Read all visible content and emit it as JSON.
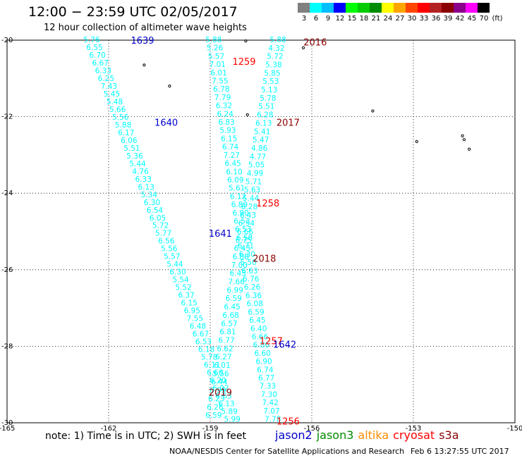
{
  "title": "12:00 − 23:59 UTC 02/05/2017",
  "subtitle": "12 hour collection of altimeter wave heights",
  "color_scale": {
    "unit": "(ft)",
    "bins": [
      {
        "label": "3",
        "color": "#808080"
      },
      {
        "label": "6",
        "color": "#00ffff"
      },
      {
        "label": "9",
        "color": "#00bfff"
      },
      {
        "label": "12",
        "color": "#0000ff"
      },
      {
        "label": "15",
        "color": "#00ff00"
      },
      {
        "label": "18",
        "color": "#00cd00"
      },
      {
        "label": "21",
        "color": "#008b00"
      },
      {
        "label": "24",
        "color": "#ffff00"
      },
      {
        "label": "27",
        "color": "#ffa500"
      },
      {
        "label": "30",
        "color": "#ff4500"
      },
      {
        "label": "33",
        "color": "#ff0000"
      },
      {
        "label": "36",
        "color": "#b22222"
      },
      {
        "label": "39",
        "color": "#8b0000"
      },
      {
        "label": "42",
        "color": "#8b008b"
      },
      {
        "label": "45",
        "color": "#ff00ff"
      },
      {
        "label": "70",
        "color": "#000000"
      }
    ]
  },
  "axes": {
    "lon_ticks": [
      "-165",
      "-162",
      "-159",
      "-156",
      "-153",
      "-150"
    ],
    "lat_ticks": [
      "-20",
      "-22",
      "-24",
      "-26",
      "-28",
      "-30"
    ]
  },
  "pass_labels": [
    {
      "text": "1639",
      "lon": -161.0,
      "lat": -20.0,
      "mission": "jason2"
    },
    {
      "text": "2016",
      "lon": -155.9,
      "lat": -20.05,
      "mission": "s3a"
    },
    {
      "text": "1259",
      "lon": -158.0,
      "lat": -20.55,
      "mission": "cryosat"
    },
    {
      "text": "1640",
      "lon": -160.3,
      "lat": -22.15,
      "mission": "jason2"
    },
    {
      "text": "2017",
      "lon": -156.7,
      "lat": -22.15,
      "mission": "s3a"
    },
    {
      "text": "1258",
      "lon": -157.3,
      "lat": -24.25,
      "mission": "cryosat"
    },
    {
      "text": "1641",
      "lon": -158.7,
      "lat": -25.05,
      "mission": "jason2"
    },
    {
      "text": "2018",
      "lon": -157.4,
      "lat": -25.7,
      "mission": "s3a"
    },
    {
      "text": "1257",
      "lon": -157.2,
      "lat": -27.85,
      "mission": "cryosat"
    },
    {
      "text": "1642",
      "lon": -156.8,
      "lat": -27.95,
      "mission": "jason2"
    },
    {
      "text": "2019",
      "lon": -158.7,
      "lat": -29.2,
      "mission": "s3a"
    },
    {
      "text": "1256",
      "lon": -156.7,
      "lat": -29.95,
      "mission": "cryosat"
    }
  ],
  "tracks": [
    {
      "name": "1639/1640",
      "start": {
        "lon": -162.5,
        "lat": -19.98
      },
      "end": {
        "lon": -158.35,
        "lat": -29.9
      },
      "values": [
        "5.76",
        "6.55",
        "6.70",
        "6.67",
        "6.33",
        "6.25",
        "7.43",
        "5.45",
        "5.48",
        "5.66",
        "5.56",
        "5.88",
        "6.17",
        "6.06",
        "5.51",
        "5.36",
        "5.44",
        "4.76",
        "6.33",
        "6.13",
        "5.34",
        "6.30",
        "6.54",
        "6.05",
        "5.72",
        "5.77",
        "6.56",
        "5.56",
        "5.57",
        "5.44",
        "6.30",
        "5.54",
        "5.52",
        "6.37",
        "6.15",
        "6.95",
        "7.55",
        "6.48",
        "6.67",
        "6.53",
        "6.18",
        "5.78",
        "6.11",
        "6.60",
        "6.20",
        "6.02",
        "6.63",
        "6.13",
        "5.89",
        "5.99"
      ],
      "color": "#00ffff"
    },
    {
      "name": "1259/1258",
      "start": {
        "lon": -158.9,
        "lat": -19.98
      },
      "end": {
        "lon": -157.15,
        "lat": -29.9
      },
      "values": [
        "5.88",
        "5.26",
        "5.57",
        "7.01",
        "6.01",
        "7.55",
        "6.78",
        "7.79",
        "6.32",
        "6.24",
        "6.83",
        "5.93",
        "6.15",
        "6.74",
        "7.27",
        "6.45",
        "6.10",
        "6.09",
        "5.61",
        "6.12",
        "6.89",
        "6.90",
        "6.53",
        "6.53",
        "6.58",
        "6.71",
        "6.30",
        "5.50",
        "6.63",
        "6.76",
        "6.26",
        "6.36",
        "6.08",
        "6.59",
        "6.45",
        "6.40",
        "6.66",
        "6.86",
        "6.60",
        "6.90",
        "6.74",
        "6.77",
        "7.33",
        "7.30",
        "7.42",
        "7.07",
        "7.78"
      ],
      "color": "#00ffff"
    },
    {
      "name": "2016/2017",
      "start": {
        "lon": -157.0,
        "lat": -19.98
      },
      "end": {
        "lon": -158.9,
        "lat": -29.8
      },
      "values": [
        "5.88",
        "4.32",
        "5.72",
        "5.38",
        "5.85",
        "5.53",
        "5.13",
        "5.78",
        "5.51",
        "6.28",
        "6.13",
        "5.41",
        "5.47",
        "4.86",
        "4.77",
        "5.05",
        "4.99",
        "5.71",
        "5.63",
        "5.44",
        "6.28",
        "6.43",
        "6.54",
        "6.66",
        "6.75",
        "6.43",
        "6.88",
        "7.00",
        "6.45",
        "7.66",
        "6.99",
        "6.59",
        "6.45",
        "6.68",
        "6.57",
        "6.81",
        "6.77",
        "6.62",
        "6.27",
        "6.01",
        "5.56",
        "6.44",
        "6.99",
        "6.23",
        "6.26",
        "6.59"
      ],
      "color": "#00ffff"
    }
  ],
  "islands": [
    {
      "lon": -160.95,
      "lat": -20.65
    },
    {
      "lon": -160.2,
      "lat": -21.2
    },
    {
      "lon": -157.9,
      "lat": -21.95
    },
    {
      "lon": -156.25,
      "lat": -20.2
    },
    {
      "lon": -157.95,
      "lat": -20.02
    },
    {
      "lon": -154.2,
      "lat": -21.85
    },
    {
      "lon": -152.9,
      "lat": -22.65
    },
    {
      "lon": -151.55,
      "lat": -22.5
    },
    {
      "lon": -151.5,
      "lat": -22.6
    },
    {
      "lon": -151.35,
      "lat": -22.85
    }
  ],
  "note": "note: 1) Time is in UTC; 2) SWH is in feet",
  "mission_legend": [
    {
      "name": "jason2",
      "color": "#0000cc"
    },
    {
      "name": "jason3",
      "color": "#008b00"
    },
    {
      "name": "altika",
      "color": "#ff8c00"
    },
    {
      "name": "cryosat",
      "color": "#ff0000"
    },
    {
      "name": "s3a",
      "color": "#8b0000"
    }
  ],
  "credit": "NOAA/NESDIS Center for Satellite Applications and Research",
  "generated": "Feb  6 13:27:55 UTC 2017"
}
